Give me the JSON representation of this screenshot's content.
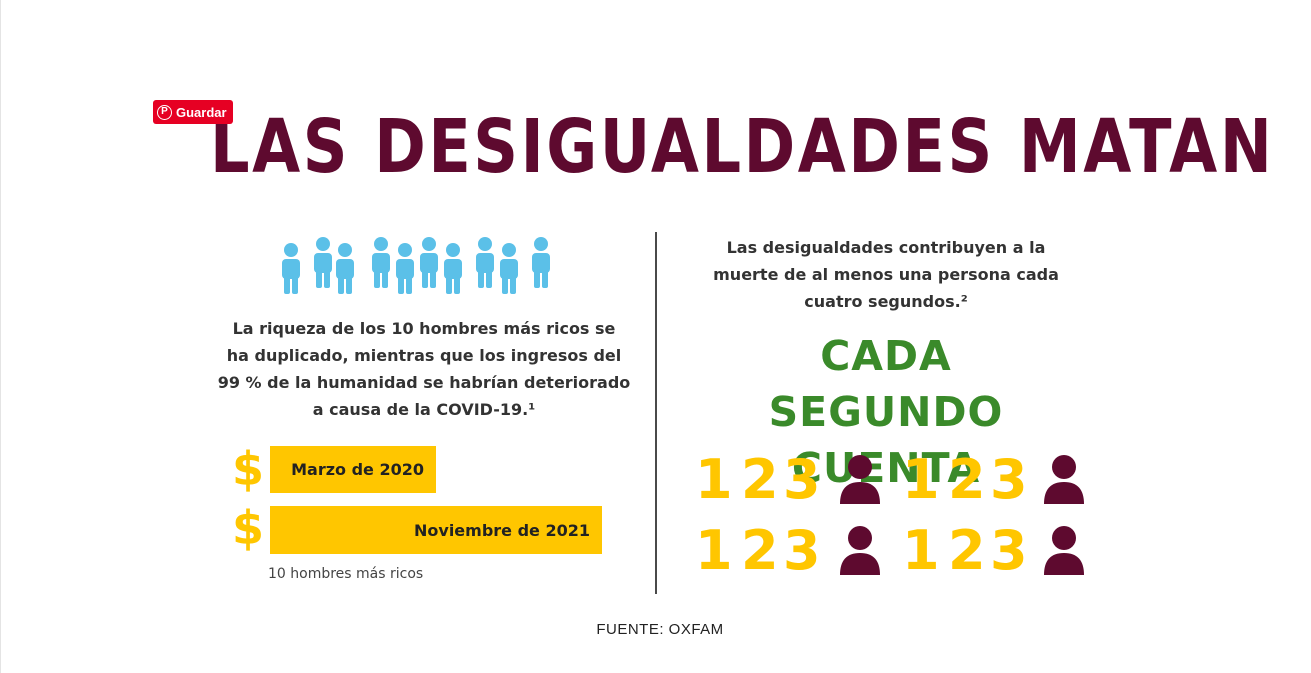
{
  "save_button": {
    "label": "Guardar",
    "icon": "pinterest-icon",
    "color": "#e60023"
  },
  "title": "LAS DESIGUALDADES MATAN",
  "left": {
    "people_count": 10,
    "people_icon": "person-icon",
    "text_lines": [
      "La riqueza de los 10 hombres más ricos se",
      "ha duplicado, mientras que los ingresos del",
      "99 % de la humanidad se habrían deteriorado",
      "a causa de la COVID-19.¹"
    ],
    "bars": [
      {
        "label": "Marzo de 2020",
        "value": 1
      },
      {
        "label": "Noviembre de 2021",
        "value": 2
      }
    ],
    "bars_currency_symbol": "$",
    "bars_note": "10 hombres más ricos"
  },
  "right": {
    "text_lines": [
      "Las desigualdades contribuyen a la",
      "muerte de al menos una persona cada",
      "cuatro segundos.²"
    ],
    "green_title_lines": [
      "CADA SEGUNDO",
      "CUENTA"
    ],
    "count_digits": [
      "1",
      "2",
      "3"
    ],
    "person_icon": "person-bust-icon"
  },
  "source": "FUENTE: OXFAM",
  "colors": {
    "title": "#5e0a2f",
    "people": "#5bc0e8",
    "yellow": "#ffc600",
    "green": "#3a8a2a",
    "bust": "#5e0a2f"
  }
}
